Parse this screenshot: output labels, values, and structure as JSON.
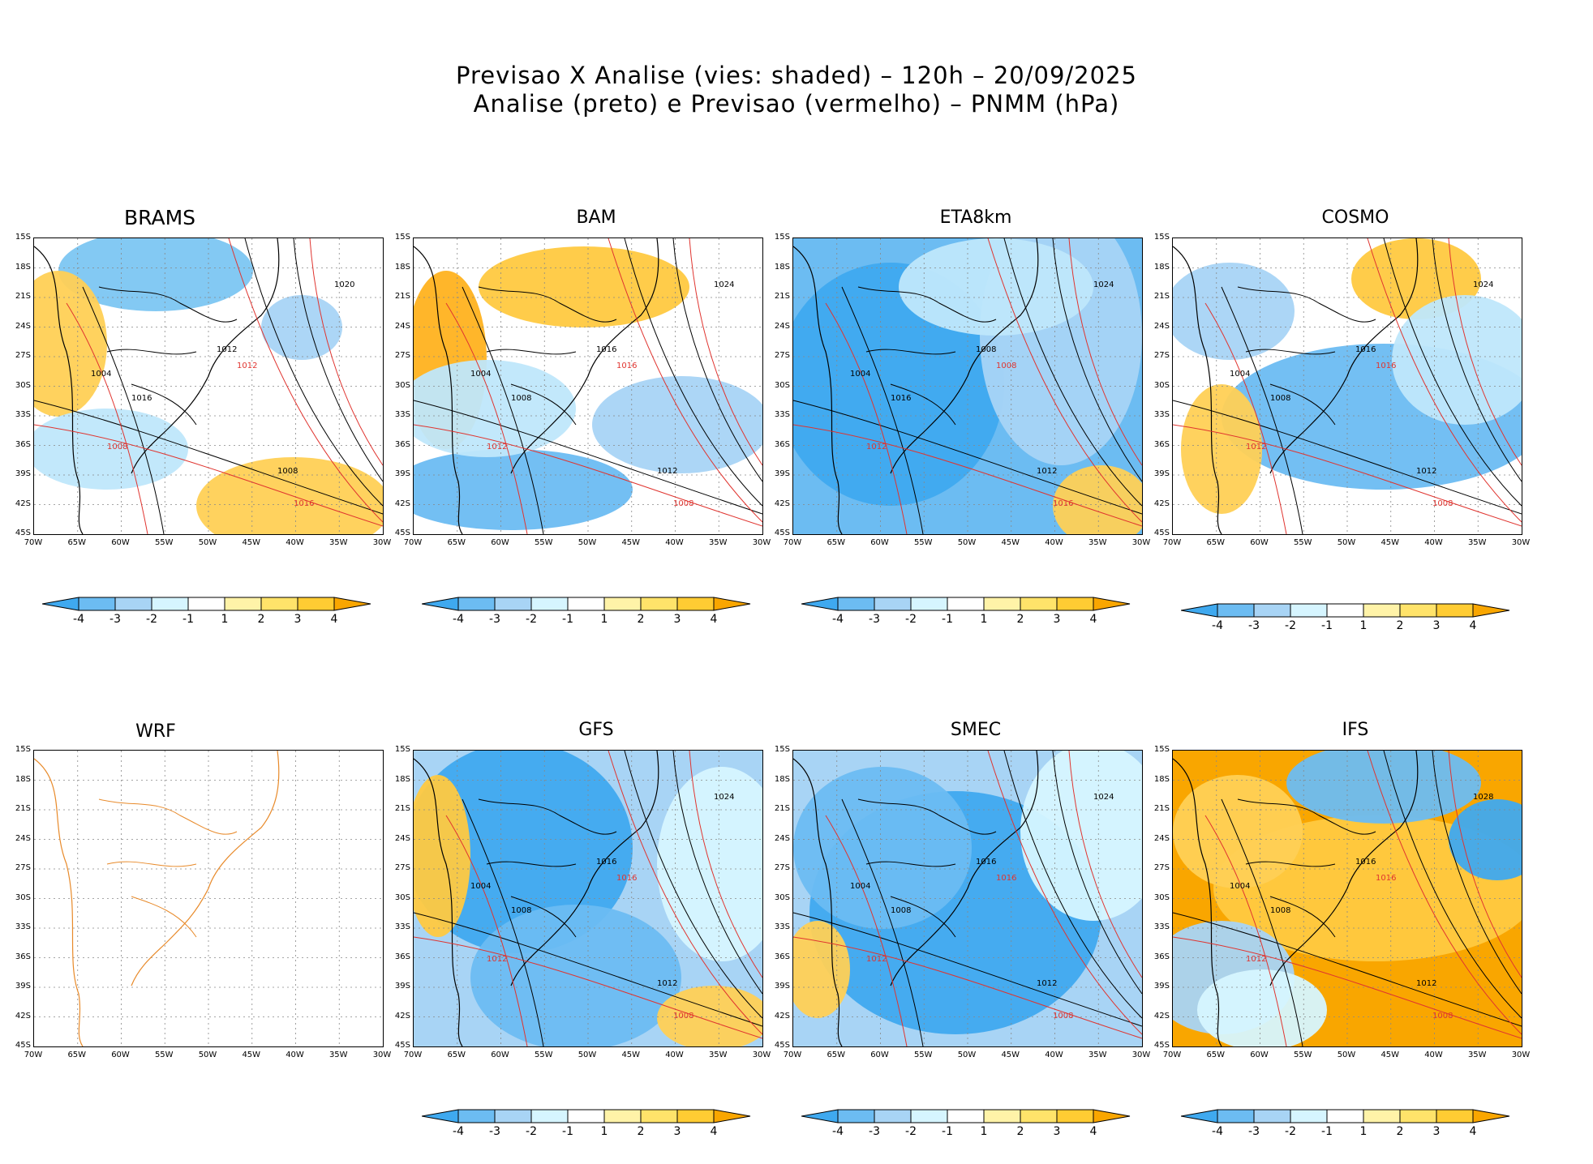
{
  "title": {
    "line1": "Previsao X Analise (vies: shaded) – 120h – 20/09/2025",
    "line2": "Analise (preto) e Previsao (vermelho) – PNMM (hPa)"
  },
  "axes": {
    "lat_labels": [
      "15S",
      "18S",
      "21S",
      "24S",
      "27S",
      "30S",
      "33S",
      "36S",
      "39S",
      "42S",
      "45S"
    ],
    "lon_labels": [
      "70W",
      "65W",
      "60W",
      "55W",
      "50W",
      "45W",
      "40W",
      "35W",
      "30W"
    ]
  },
  "colorbar": {
    "ticks": [
      "-4",
      "-3",
      "-2",
      "-1",
      "1",
      "2",
      "3",
      "4"
    ],
    "colors": [
      "#3fa9ef",
      "#6cbcf2",
      "#a8d4f5",
      "#d6f5ff",
      "#ffffff",
      "#fff3a8",
      "#ffe36a",
      "#ffcc33",
      "#f9a600"
    ]
  },
  "panels": [
    {
      "name": "BRAMS",
      "labels": {
        "l1": "1012",
        "l2": "1008",
        "l3": "1016",
        "l4": "1004",
        "l5": "1020"
      }
    },
    {
      "name": "BAM",
      "labels": {
        "l1": "1016",
        "l2": "1012",
        "l3": "1008",
        "l4": "1004",
        "l5": "1024"
      }
    },
    {
      "name": "ETA8km",
      "labels": {
        "l1": "1008",
        "l2": "1012",
        "l3": "1016",
        "l4": "1004",
        "l5": "1024"
      }
    },
    {
      "name": "COSMO",
      "labels": {
        "l1": "1016",
        "l2": "1012",
        "l3": "1008",
        "l4": "1004",
        "l5": "1024"
      }
    },
    {
      "name": "WRF",
      "labels": {
        "l1": "",
        "l2": "",
        "l3": "",
        "l4": "",
        "l5": ""
      }
    },
    {
      "name": "GFS",
      "labels": {
        "l1": "1016",
        "l2": "1012",
        "l3": "1008",
        "l4": "1004",
        "l5": "1024"
      }
    },
    {
      "name": "SMEC",
      "labels": {
        "l1": "1016",
        "l2": "1012",
        "l3": "1008",
        "l4": "1004",
        "l5": "1024"
      }
    },
    {
      "name": "IFS",
      "labels": {
        "l1": "1016",
        "l2": "1012",
        "l3": "1008",
        "l4": "1004",
        "l5": "1028"
      }
    }
  ]
}
